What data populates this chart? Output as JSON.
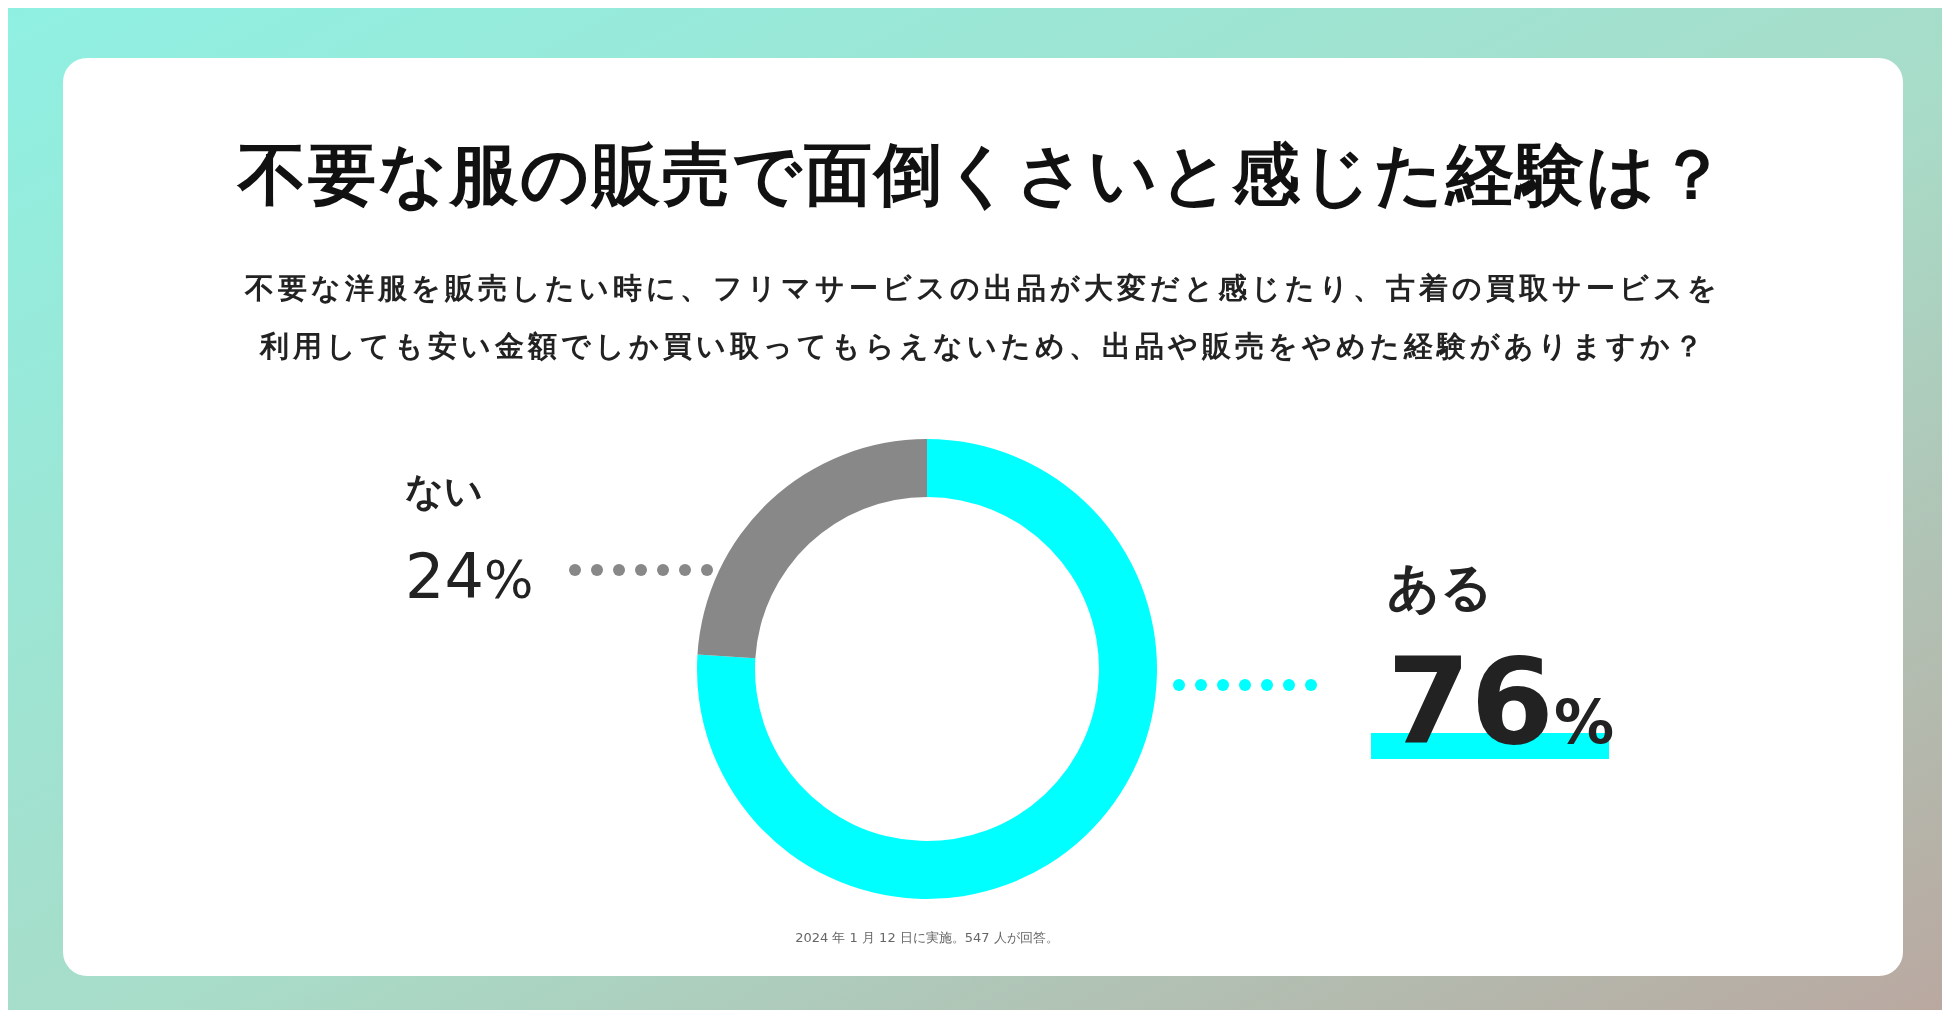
{
  "chart_data": {
    "type": "donut",
    "title": "不要な服の販売で面倒くさいと感じた経験は？",
    "subtitle": "不要な洋服を販売したい時に、フリマサービスの出品が大変だと感じたり、古着の買取サービスを利用しても安い金額でしか買い取ってもらえないため、出品や販売をやめた経験がありますか？",
    "categories": [
      "ある",
      "ない"
    ],
    "values": [
      76,
      24
    ],
    "colors": [
      "#00ffff",
      "#888888"
    ],
    "value_labels": [
      "76%",
      "24%"
    ],
    "annotations": [
      "2024 年 1 月 12 日に実施。547 人が回答。"
    ]
  }
}
